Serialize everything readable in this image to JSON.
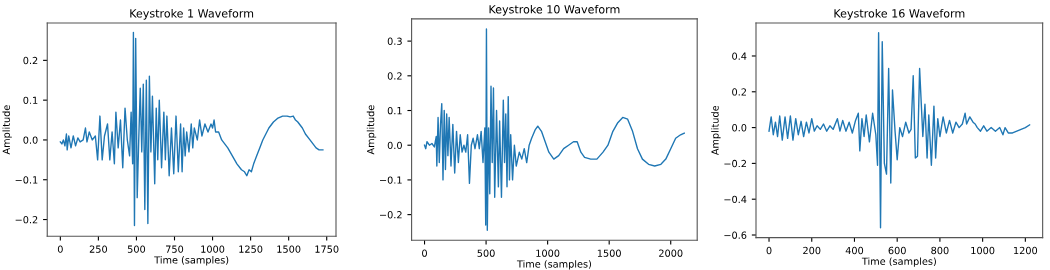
{
  "chart_data": [
    {
      "type": "line",
      "title": "Keystroke 1 Waveform",
      "xlabel": "Time (samples)",
      "ylabel": "Amplitude",
      "xlim": [
        -86,
        1811
      ],
      "ylim": [
        -0.242,
        0.294
      ],
      "xticks": [
        0,
        250,
        500,
        750,
        1000,
        1250,
        1500,
        1750
      ],
      "yticks": [
        {
          "value": -0.2,
          "label": "−0.2"
        },
        {
          "value": -0.1,
          "label": "−0.1"
        },
        {
          "value": 0.0,
          "label": "0.0"
        },
        {
          "value": 0.1,
          "label": "0.1"
        },
        {
          "value": 0.2,
          "label": "0.2"
        }
      ],
      "grid": false,
      "legend": false,
      "series": [
        {
          "color": "#1f77b4",
          "x": [
            0,
            10,
            20,
            30,
            40,
            45,
            55,
            70,
            85,
            100,
            115,
            130,
            150,
            165,
            175,
            190,
            210,
            230,
            245,
            260,
            275,
            290,
            310,
            325,
            340,
            355,
            365,
            380,
            395,
            410,
            425,
            440,
            455,
            465,
            475,
            480,
            487,
            495,
            505,
            515,
            525,
            535,
            545,
            555,
            565,
            575,
            585,
            595,
            605,
            620,
            630,
            640,
            650,
            665,
            680,
            690,
            700,
            715,
            730,
            745,
            760,
            775,
            790,
            800,
            810,
            820,
            830,
            845,
            860,
            870,
            880,
            900,
            915,
            930,
            950,
            970,
            990,
            1000,
            1010,
            1020,
            1040,
            1060,
            1080,
            1100,
            1130,
            1160,
            1190,
            1210,
            1225,
            1240,
            1255,
            1270,
            1290,
            1310,
            1330,
            1350,
            1370,
            1400,
            1430,
            1460,
            1490,
            1510,
            1530,
            1545,
            1560,
            1590,
            1610,
            1640,
            1660,
            1680,
            1700,
            1725
          ],
          "values": [
            -0.005,
            -0.01,
            0.0,
            -0.015,
            0.015,
            -0.025,
            0.01,
            -0.02,
            0.01,
            -0.015,
            0.005,
            -0.005,
            0.0,
            0.03,
            -0.005,
            0.02,
            0.0,
            0.01,
            -0.05,
            0.06,
            -0.05,
            0.01,
            0.04,
            -0.05,
            0.02,
            -0.06,
            0.07,
            -0.02,
            0.05,
            -0.07,
            0.08,
            0.0,
            -0.04,
            0.07,
            -0.06,
            0.27,
            -0.215,
            0.255,
            -0.145,
            0.0,
            0.13,
            -0.03,
            0.14,
            -0.175,
            0.15,
            -0.21,
            0.16,
            -0.03,
            0.11,
            -0.11,
            0.08,
            -0.05,
            0.1,
            -0.07,
            0.07,
            -0.05,
            0.06,
            -0.09,
            0.03,
            -0.085,
            0.06,
            -0.08,
            0.04,
            -0.08,
            0.03,
            -0.04,
            0.02,
            -0.03,
            0.04,
            -0.02,
            0.03,
            0.0,
            0.05,
            0.01,
            0.04,
            0.02,
            0.04,
            0.03,
            0.05,
            0.02,
            0.02,
            0.0,
            -0.01,
            -0.02,
            -0.04,
            -0.06,
            -0.075,
            -0.08,
            -0.09,
            -0.075,
            -0.08,
            -0.06,
            -0.04,
            -0.02,
            0.0,
            0.015,
            0.03,
            0.045,
            0.055,
            0.06,
            0.06,
            0.058,
            0.06,
            0.05,
            0.045,
            0.03,
            0.015,
            0.0,
            -0.01,
            -0.02,
            -0.025,
            -0.025
          ]
        }
      ]
    },
    {
      "type": "line",
      "title": "Keystroke 10 Waveform",
      "xlabel": "Time (samples)",
      "ylabel": "Amplitude",
      "xlim": [
        -105,
        2215
      ],
      "ylim": [
        -0.274,
        0.364
      ],
      "xticks": [
        0,
        500,
        1000,
        1500,
        2000
      ],
      "yticks": [
        {
          "value": -0.2,
          "label": "−0.2"
        },
        {
          "value": -0.1,
          "label": "−0.1"
        },
        {
          "value": 0.0,
          "label": "0.0"
        },
        {
          "value": 0.1,
          "label": "0.1"
        },
        {
          "value": 0.2,
          "label": "0.2"
        },
        {
          "value": 0.3,
          "label": "0.3"
        }
      ],
      "grid": false,
      "legend": false,
      "series": [
        {
          "color": "#1f77b4",
          "x": [
            0,
            10,
            20,
            40,
            60,
            80,
            95,
            100,
            110,
            120,
            130,
            140,
            150,
            160,
            170,
            180,
            190,
            200,
            215,
            230,
            245,
            260,
            275,
            290,
            305,
            320,
            335,
            350,
            365,
            380,
            395,
            410,
            430,
            445,
            460,
            475,
            490,
            497,
            503,
            510,
            520,
            530,
            540,
            550,
            560,
            570,
            585,
            600,
            610,
            625,
            640,
            650,
            660,
            670,
            680,
            690,
            700,
            715,
            730,
            745,
            770,
            790,
            810,
            830,
            850,
            870,
            900,
            920,
            950,
            980,
            1010,
            1050,
            1090,
            1130,
            1170,
            1210,
            1240,
            1270,
            1300,
            1350,
            1400,
            1450,
            1490,
            1530,
            1570,
            1610,
            1650,
            1690,
            1730,
            1770,
            1820,
            1870,
            1920,
            1960,
            2000,
            2040,
            2080,
            2110
          ],
          "values": [
            0.0,
            -0.01,
            0.01,
            0.0,
            0.005,
            -0.005,
            0.025,
            -0.06,
            0.08,
            -0.05,
            0.06,
            0.12,
            -0.1,
            0.1,
            -0.07,
            0.09,
            -0.03,
            0.08,
            -0.06,
            0.06,
            -0.08,
            0.04,
            -0.05,
            0.03,
            -0.02,
            0.0,
            -0.02,
            0.03,
            -0.11,
            0.0,
            0.02,
            -0.01,
            0.03,
            -0.01,
            0.04,
            -0.05,
            0.05,
            -0.23,
            0.335,
            -0.245,
            0.05,
            -0.14,
            0.17,
            -0.05,
            0.165,
            -0.15,
            0.1,
            -0.12,
            0.07,
            -0.15,
            0.13,
            -0.05,
            0.09,
            -0.12,
            0.14,
            -0.1,
            0.03,
            -0.1,
            0.0,
            -0.06,
            -0.02,
            -0.04,
            -0.01,
            -0.05,
            0.0,
            0.02,
            0.045,
            0.055,
            0.04,
            0.01,
            -0.02,
            -0.04,
            -0.03,
            -0.01,
            0.0,
            0.01,
            0.01,
            -0.02,
            -0.035,
            -0.04,
            -0.04,
            -0.02,
            0.0,
            0.04,
            0.065,
            0.08,
            0.075,
            0.04,
            -0.01,
            -0.04,
            -0.055,
            -0.06,
            -0.055,
            -0.04,
            -0.01,
            0.02,
            0.03,
            0.035
          ]
        }
      ]
    },
    {
      "type": "line",
      "title": "Keystroke 16 Waveform",
      "xlabel": "Time (samples)",
      "ylabel": "Amplitude",
      "xlim": [
        -61,
        1281
      ],
      "ylim": [
        -0.6145,
        0.5845
      ],
      "xticks": [
        0,
        200,
        400,
        600,
        800,
        1000,
        1200
      ],
      "yticks": [
        {
          "value": -0.6,
          "label": "−0.6"
        },
        {
          "value": -0.4,
          "label": "−0.4"
        },
        {
          "value": -0.2,
          "label": "−0.2"
        },
        {
          "value": 0.0,
          "label": "0.0"
        },
        {
          "value": 0.2,
          "label": "0.2"
        },
        {
          "value": 0.4,
          "label": "0.4"
        }
      ],
      "grid": false,
      "legend": false,
      "series": [
        {
          "color": "#1f77b4",
          "x": [
            0,
            10,
            20,
            30,
            40,
            50,
            62,
            75,
            87,
            100,
            112,
            125,
            137,
            150,
            162,
            175,
            187,
            200,
            212,
            225,
            240,
            255,
            270,
            285,
            300,
            320,
            332,
            345,
            360,
            375,
            390,
            405,
            418,
            425,
            435,
            445,
            455,
            470,
            485,
            500,
            508,
            513,
            522,
            530,
            540,
            550,
            560,
            570,
            578,
            590,
            600,
            612,
            625,
            640,
            655,
            665,
            675,
            685,
            695,
            705,
            720,
            730,
            740,
            748,
            760,
            772,
            780,
            790,
            800,
            815,
            830,
            845,
            860,
            875,
            890,
            905,
            918,
            925,
            940,
            955,
            965,
            975,
            990,
            1005,
            1020,
            1040,
            1060,
            1080,
            1095,
            1105,
            1120,
            1140,
            1160,
            1180,
            1200,
            1220
          ],
          "values": [
            -0.02,
            0.06,
            -0.04,
            0.03,
            -0.05,
            0.065,
            -0.07,
            0.06,
            -0.06,
            0.065,
            -0.07,
            0.05,
            -0.04,
            0.035,
            -0.05,
            0.03,
            -0.03,
            0.05,
            -0.02,
            0.01,
            -0.01,
            0.02,
            -0.02,
            0.01,
            -0.01,
            0.05,
            -0.02,
            0.04,
            -0.02,
            0.03,
            -0.03,
            0.04,
            0.08,
            -0.13,
            0.05,
            -0.05,
            0.07,
            -0.08,
            0.08,
            -0.04,
            -0.21,
            0.53,
            -0.56,
            0.48,
            -0.2,
            -0.26,
            0.33,
            -0.31,
            0.21,
            -0.02,
            -0.18,
            0.0,
            -0.05,
            0.03,
            -0.03,
            -0.01,
            0.29,
            -0.17,
            -0.16,
            0.33,
            -0.05,
            0.13,
            -0.17,
            0.07,
            -0.21,
            0.12,
            -0.17,
            0.05,
            -0.05,
            0.06,
            -0.03,
            0.04,
            -0.03,
            0.03,
            0.0,
            0.02,
            0.08,
            0.02,
            0.06,
            0.03,
            0.02,
            0.0,
            -0.02,
            0.01,
            -0.02,
            0.0,
            -0.02,
            0.0,
            -0.04,
            0.0,
            -0.03,
            -0.03,
            -0.02,
            -0.01,
            0.0,
            0.015
          ]
        }
      ]
    }
  ]
}
